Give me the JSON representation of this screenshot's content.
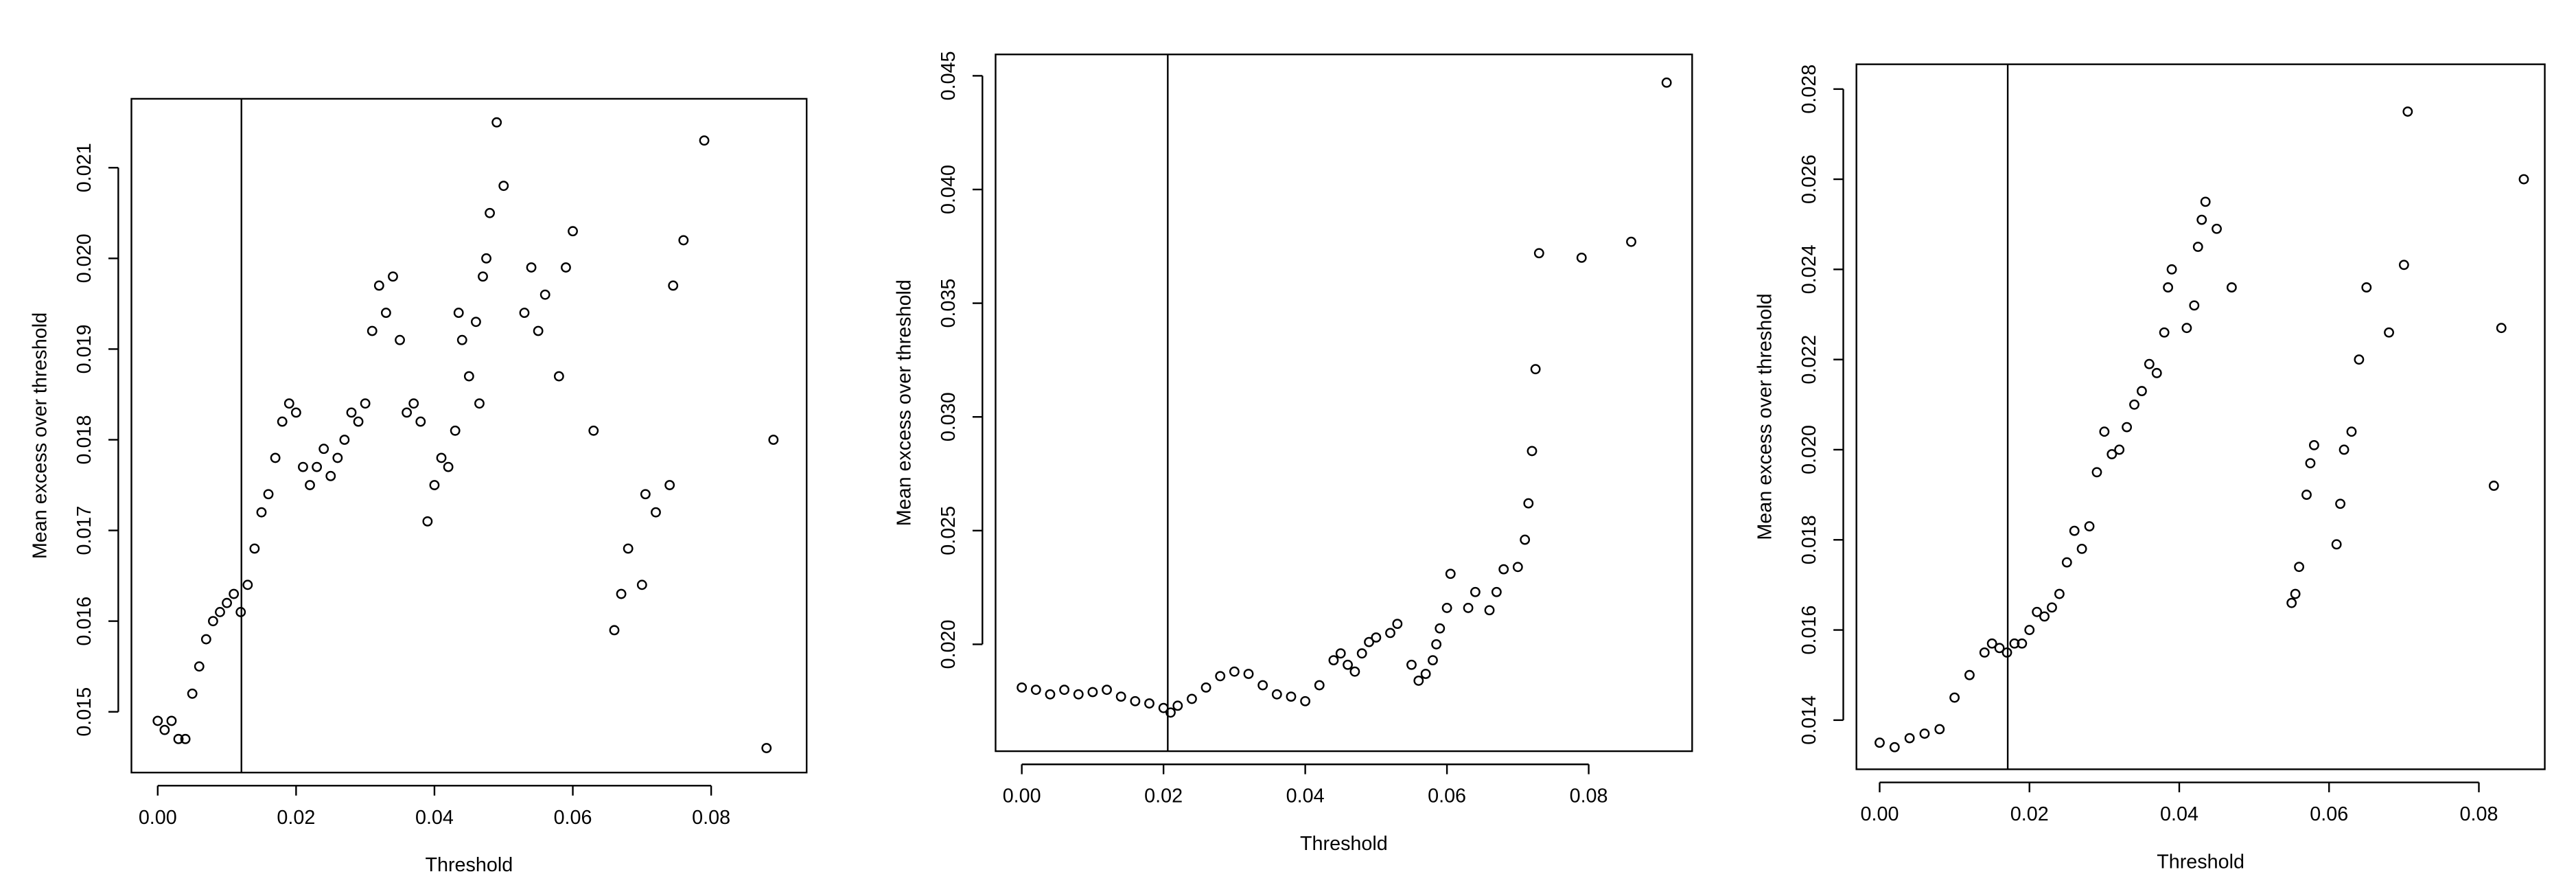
{
  "chart_data": [
    {
      "type": "scatter",
      "xlabel": "Threshold",
      "ylabel": "Mean excess over threshold",
      "color": "#000000",
      "xlim": [
        -0.0038,
        0.0938
      ],
      "ylim": [
        0.01433,
        0.02176
      ],
      "xticks": [
        {
          "value": 0,
          "label": "0.00"
        },
        0.02,
        0.04,
        0.06,
        0.08
      ],
      "yticks": [
        0.015,
        0.016,
        0.017,
        0.018,
        0.019,
        {
          "value": 0.02,
          "label": "0.020"
        },
        0.021
      ],
      "vline": 0.0121,
      "x": [
        0.0,
        0.001,
        0.002,
        0.003,
        0.004,
        0.005,
        0.006,
        0.007,
        0.008,
        0.009,
        0.01,
        0.011,
        0.012,
        0.013,
        0.014,
        0.015,
        0.016,
        0.017,
        0.018,
        0.019,
        0.02,
        0.021,
        0.022,
        0.023,
        0.024,
        0.025,
        0.026,
        0.027,
        0.028,
        0.029,
        0.03,
        0.031,
        0.032,
        0.033,
        0.034,
        0.035,
        0.036,
        0.037,
        0.038,
        0.039,
        0.04,
        0.041,
        0.042,
        0.043,
        0.0435,
        0.044,
        0.045,
        0.046,
        0.0465,
        0.047,
        0.0475,
        0.048,
        0.049,
        0.05,
        0.053,
        0.054,
        0.055,
        0.056,
        0.058,
        0.059,
        0.06,
        0.063,
        0.066,
        0.067,
        0.068,
        0.07,
        0.0705,
        0.072,
        0.074,
        0.0745,
        0.076,
        0.079,
        0.088,
        0.089
      ],
      "y": [
        0.0149,
        0.0148,
        0.0149,
        0.0147,
        0.0147,
        0.0152,
        0.0155,
        0.0158,
        0.016,
        0.0161,
        0.0162,
        0.0163,
        0.0161,
        0.0164,
        0.0168,
        0.0172,
        0.0174,
        0.0178,
        0.0182,
        0.0184,
        0.0183,
        0.0177,
        0.0175,
        0.0177,
        0.0179,
        0.0176,
        0.0178,
        0.018,
        0.0183,
        0.0182,
        0.0184,
        0.0192,
        0.0197,
        0.0194,
        0.0198,
        0.0191,
        0.0183,
        0.0184,
        0.0182,
        0.0171,
        0.0175,
        0.0178,
        0.0177,
        0.0181,
        0.0194,
        0.0191,
        0.0187,
        0.0193,
        0.0184,
        0.0198,
        0.02,
        0.0205,
        0.0215,
        0.0208,
        0.0194,
        0.0199,
        0.0192,
        0.0196,
        0.0187,
        0.0199,
        0.0203,
        0.0181,
        0.0159,
        0.0163,
        0.0168,
        0.0164,
        0.0174,
        0.0172,
        0.0175,
        0.0197,
        0.0202,
        0.0213,
        0.0146,
        0.018
      ]
    },
    {
      "type": "scatter",
      "xlabel": "Threshold",
      "ylabel": "Mean excess over threshold",
      "color": "#000000",
      "xlim": [
        -0.0037,
        0.0946
      ],
      "ylim": [
        0.0153,
        0.04594
      ],
      "xticks": [
        {
          "value": 0,
          "label": "0.00"
        },
        0.02,
        0.04,
        0.06,
        0.08
      ],
      "yticks": [
        {
          "value": 0.02,
          "label": "0.020"
        },
        0.025,
        {
          "value": 0.03,
          "label": "0.030"
        },
        0.035,
        {
          "value": 0.04,
          "label": "0.040"
        },
        0.045
      ],
      "vline": 0.0206,
      "x": [
        0.0,
        0.002,
        0.004,
        0.006,
        0.008,
        0.01,
        0.012,
        0.014,
        0.016,
        0.018,
        0.02,
        0.021,
        0.022,
        0.024,
        0.026,
        0.028,
        0.03,
        0.032,
        0.034,
        0.036,
        0.038,
        0.04,
        0.042,
        0.044,
        0.045,
        0.046,
        0.047,
        0.048,
        0.049,
        0.05,
        0.052,
        0.053,
        0.055,
        0.056,
        0.057,
        0.058,
        0.0585,
        0.059,
        0.06,
        0.0605,
        0.063,
        0.064,
        0.066,
        0.067,
        0.068,
        0.07,
        0.071,
        0.0715,
        0.072,
        0.0725,
        0.073,
        0.079,
        0.086,
        0.091
      ],
      "y": [
        0.0181,
        0.018,
        0.0178,
        0.018,
        0.0178,
        0.0179,
        0.018,
        0.0177,
        0.0175,
        0.0174,
        0.0172,
        0.017,
        0.0173,
        0.0176,
        0.0181,
        0.0186,
        0.0188,
        0.0187,
        0.0182,
        0.0178,
        0.0177,
        0.0175,
        0.0182,
        0.0193,
        0.0196,
        0.0191,
        0.0188,
        0.0196,
        0.0201,
        0.0203,
        0.0205,
        0.0209,
        0.0191,
        0.0184,
        0.0187,
        0.0193,
        0.02,
        0.0207,
        0.0216,
        0.0231,
        0.0216,
        0.0223,
        0.0215,
        0.0223,
        0.0233,
        0.0234,
        0.0246,
        0.0262,
        0.0285,
        0.0321,
        0.0372,
        0.037,
        0.0377,
        0.0447
      ]
    },
    {
      "type": "scatter",
      "xlabel": "Threshold",
      "ylabel": "Mean excess over threshold",
      "color": "#000000",
      "xlim": [
        -0.0031,
        0.0888
      ],
      "ylim": [
        0.01291,
        0.02855
      ],
      "xticks": [
        {
          "value": 0,
          "label": "0.00"
        },
        0.02,
        0.04,
        0.06,
        0.08
      ],
      "yticks": [
        0.014,
        0.016,
        0.018,
        {
          "value": 0.02,
          "label": "0.020"
        },
        0.022,
        0.024,
        0.026,
        0.028
      ],
      "vline": 0.0171,
      "x": [
        0.0,
        0.002,
        0.004,
        0.006,
        0.008,
        0.01,
        0.012,
        0.014,
        0.015,
        0.016,
        0.017,
        0.018,
        0.019,
        0.02,
        0.021,
        0.022,
        0.023,
        0.024,
        0.025,
        0.026,
        0.027,
        0.028,
        0.029,
        0.03,
        0.031,
        0.032,
        0.033,
        0.034,
        0.035,
        0.036,
        0.037,
        0.038,
        0.0385,
        0.039,
        0.041,
        0.042,
        0.0425,
        0.043,
        0.0435,
        0.045,
        0.047,
        0.055,
        0.0555,
        0.056,
        0.057,
        0.0575,
        0.058,
        0.061,
        0.0615,
        0.062,
        0.063,
        0.064,
        0.065,
        0.068,
        0.07,
        0.0705,
        0.082,
        0.083,
        0.086
      ],
      "y": [
        0.0135,
        0.0134,
        0.0136,
        0.0137,
        0.0138,
        0.0145,
        0.015,
        0.0155,
        0.0157,
        0.0156,
        0.0155,
        0.0157,
        0.0157,
        0.016,
        0.0164,
        0.0163,
        0.0165,
        0.0168,
        0.0175,
        0.0182,
        0.0178,
        0.0183,
        0.0195,
        0.0204,
        0.0199,
        0.02,
        0.0205,
        0.021,
        0.0213,
        0.0219,
        0.0217,
        0.0226,
        0.0236,
        0.024,
        0.0227,
        0.0232,
        0.0245,
        0.0251,
        0.0255,
        0.0249,
        0.0236,
        0.0166,
        0.0168,
        0.0174,
        0.019,
        0.0197,
        0.0201,
        0.0179,
        0.0188,
        0.02,
        0.0204,
        0.022,
        0.0236,
        0.0226,
        0.0241,
        0.0275,
        0.0192,
        0.0227,
        0.026
      ]
    }
  ]
}
